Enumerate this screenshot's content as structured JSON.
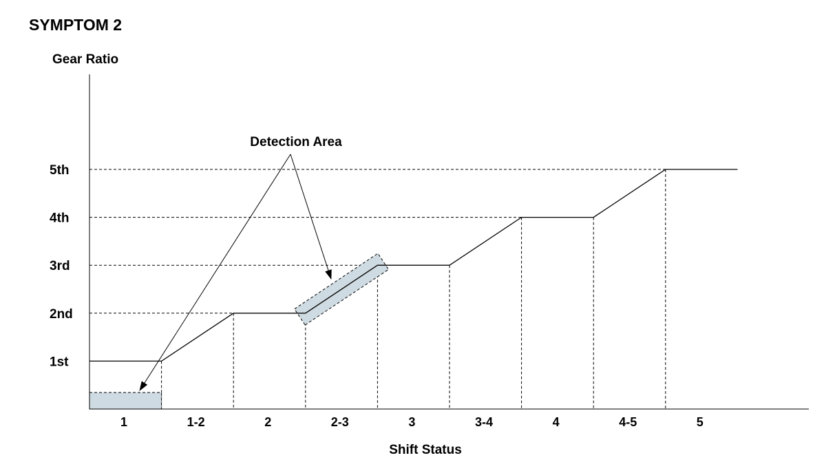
{
  "title": "SYMPTOM 2",
  "chart_data": {
    "type": "line",
    "ylabel": "Gear Ratio",
    "xlabel": "Shift Status",
    "y_levels": [
      "1st",
      "2nd",
      "3rd",
      "4th",
      "5th"
    ],
    "categories": [
      "1",
      "1-2",
      "2",
      "2-3",
      "3",
      "3-4",
      "4",
      "4-5",
      "5"
    ],
    "series": [
      {
        "values": [
          1,
          1.5,
          2,
          2.5,
          3,
          3.5,
          4,
          4.5,
          5
        ]
      }
    ],
    "grid": "dashed",
    "legend": "none"
  },
  "annotation": {
    "label": "Detection Area",
    "targets": [
      "1",
      "2-3"
    ]
  },
  "colors": {
    "line": "#000000",
    "detection_fill": "#cfdbe2",
    "background": "#ffffff"
  }
}
